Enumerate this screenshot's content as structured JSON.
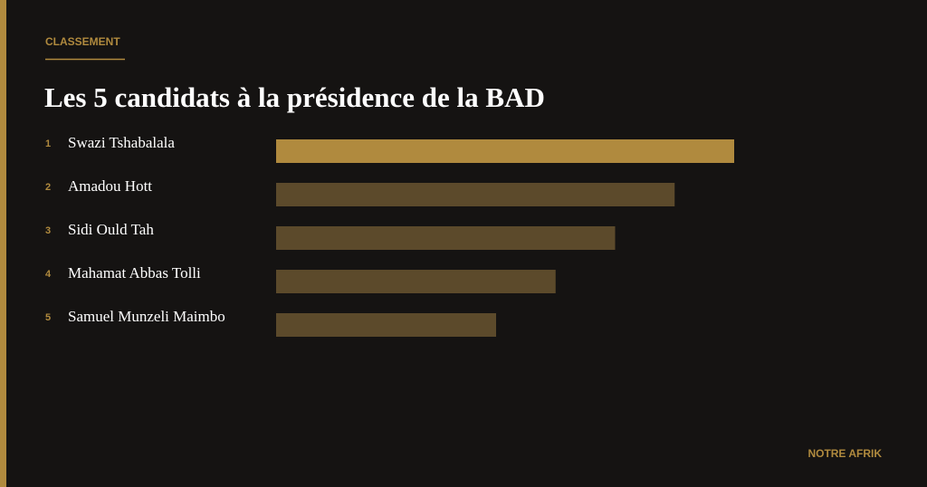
{
  "header": {
    "label": "CLASSEMENT",
    "title": "Les 5 candidats à la présidence de la BAD"
  },
  "items": [
    {
      "rank": 1,
      "name": "Swazi Tshabalala"
    },
    {
      "rank": 2,
      "name": "Amadou Hott"
    },
    {
      "rank": 3,
      "name": "Sidi Ould Tah"
    },
    {
      "rank": 4,
      "name": "Mahamat Abbas Tolli"
    },
    {
      "rank": 5,
      "name": "Samuel Munzeli Maimbo"
    }
  ],
  "footer": {
    "brand": "NOTRE AFRIK"
  }
}
